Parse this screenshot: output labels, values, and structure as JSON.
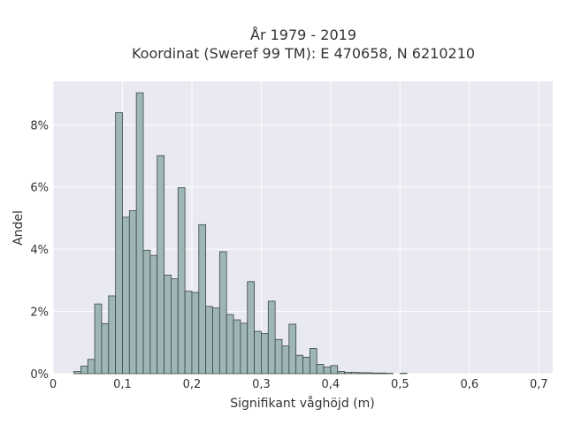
{
  "chart_data": {
    "type": "bar",
    "title_line1": "År 1979 - 2019",
    "title_line2": "Koordinat (Sweref 99 TM): E 470658, N 6210210",
    "xlabel": "Signifikant våghöjd (m)",
    "ylabel": "Andel",
    "xlim": [
      0,
      0.72
    ],
    "ylim": [
      0,
      0.094
    ],
    "x_ticks": [
      0,
      0.1,
      0.2,
      0.3,
      0.4,
      0.5,
      0.6,
      0.7
    ],
    "x_tick_labels": [
      "0",
      "0,1",
      "0,2",
      "0,3",
      "0,4",
      "0,5",
      "0,6",
      "0,7"
    ],
    "y_ticks": [
      0,
      0.02,
      0.04,
      0.06,
      0.08
    ],
    "y_tick_labels": [
      "0%",
      "2%",
      "4%",
      "6%",
      "8%"
    ],
    "grid": true,
    "bin_width": 0.01,
    "bin_starts": [
      0.03,
      0.04,
      0.05,
      0.06,
      0.07,
      0.08,
      0.09,
      0.1,
      0.11,
      0.12,
      0.13,
      0.14,
      0.15,
      0.16,
      0.17,
      0.18,
      0.19,
      0.2,
      0.21,
      0.22,
      0.23,
      0.24,
      0.25,
      0.26,
      0.27,
      0.28,
      0.29,
      0.3,
      0.31,
      0.32,
      0.33,
      0.34,
      0.35,
      0.36,
      0.37,
      0.38,
      0.39,
      0.4,
      0.41,
      0.42,
      0.43,
      0.44,
      0.45,
      0.46,
      0.47,
      0.48,
      0.49,
      0.5,
      0.51,
      0.52,
      0.53,
      0.54,
      0.55,
      0.56,
      0.57,
      0.58,
      0.59,
      0.6,
      0.61,
      0.62,
      0.63,
      0.64
    ],
    "values": [
      0.0007,
      0.0024,
      0.0046,
      0.0224,
      0.0161,
      0.025,
      0.0839,
      0.0503,
      0.0524,
      0.0903,
      0.0397,
      0.038,
      0.0701,
      0.0317,
      0.0305,
      0.0598,
      0.0265,
      0.0261,
      0.0479,
      0.0216,
      0.0211,
      0.0392,
      0.019,
      0.0173,
      0.0162,
      0.0296,
      0.0136,
      0.0129,
      0.0233,
      0.011,
      0.0089,
      0.0159,
      0.0059,
      0.0053,
      0.0081,
      0.003,
      0.0021,
      0.0026,
      0.0007,
      0.0004,
      0.0004,
      0.0003,
      0.0003,
      0.0002,
      0.0002,
      0.0001,
      0.0,
      0.0001,
      0.0,
      0.0,
      0.0,
      0.0,
      0.0,
      0.0,
      0.0,
      0.0,
      0.0,
      0.0,
      0.0,
      0.0,
      0.0,
      0.0
    ],
    "colors": {
      "bar_fill": "#9fb6b6",
      "bar_stroke": "#3a4646",
      "plot_background": "#e9e9f1",
      "grid": "#ffffff",
      "text": "#333333"
    }
  }
}
